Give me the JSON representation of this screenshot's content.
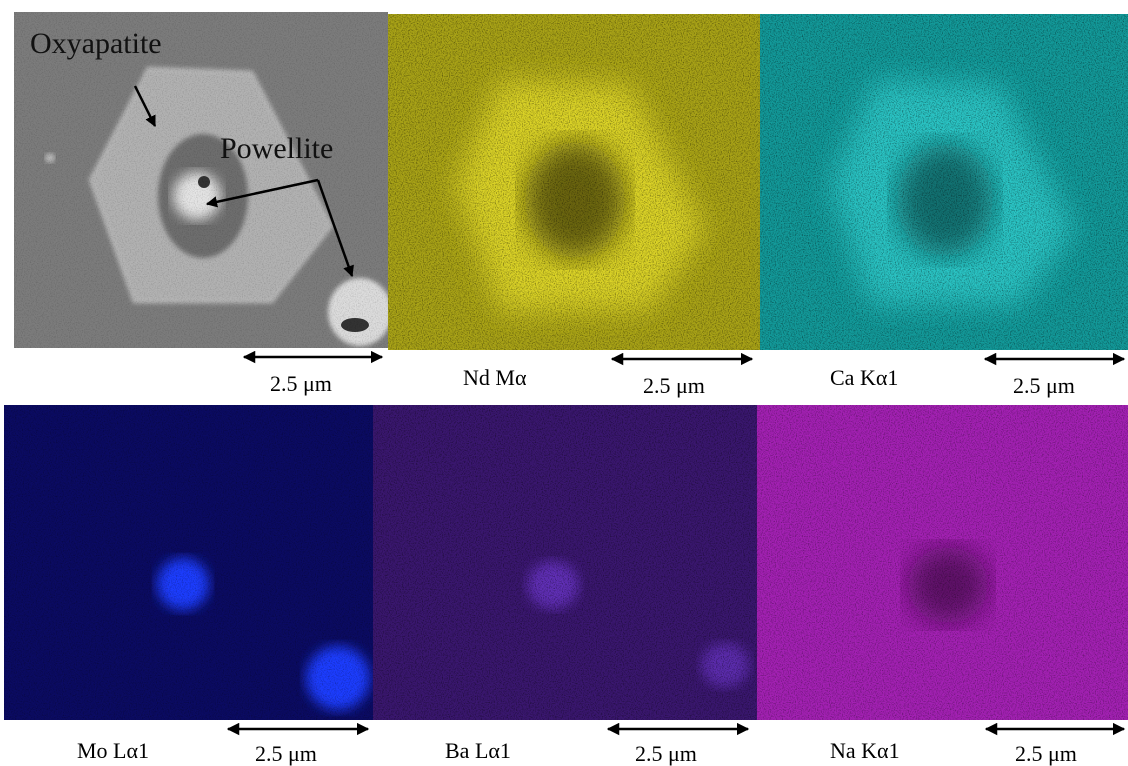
{
  "panels": [
    {
      "annotations": [
        "Oxyapatite",
        "Powellite"
      ],
      "scale_bar": "2.5 μm"
    },
    {
      "label": "Nd Mα",
      "scale_bar": "2.5 μm"
    },
    {
      "label": "Ca Kα1",
      "scale_bar": "2.5 μm"
    },
    {
      "label": "Mo Lα1",
      "scale_bar": "2.5 μm"
    },
    {
      "label": "Ba Lα1",
      "scale_bar": "2.5 μm"
    },
    {
      "label": "Na Kα1",
      "scale_bar": "2.5 μm"
    }
  ]
}
